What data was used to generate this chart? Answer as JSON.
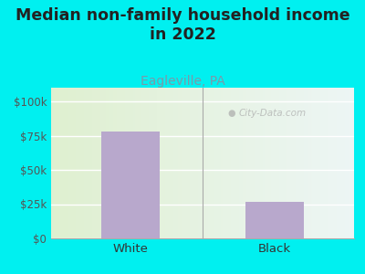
{
  "title": "Median non-family household income\nin 2022",
  "subtitle": "Eagleville, PA",
  "categories": [
    "White",
    "Black"
  ],
  "values": [
    78000,
    27000
  ],
  "bar_color": "#b8a8cc",
  "yticks": [
    0,
    25000,
    50000,
    75000,
    100000
  ],
  "ytick_labels": [
    "$0",
    "$25k",
    "$50k",
    "$75k",
    "$100k"
  ],
  "ylim": [
    0,
    110000
  ],
  "background_outer": "#00f0f0",
  "title_fontsize": 12.5,
  "title_color": "#222222",
  "subtitle_fontsize": 10,
  "subtitle_color": "#7a9aaa",
  "tick_label_fontsize": 8.5,
  "tick_label_color": "#555555",
  "xtick_label_fontsize": 9.5,
  "xtick_label_color": "#333333",
  "watermark": "⌕ City-Data.com",
  "watermark2": "City-Data.com"
}
